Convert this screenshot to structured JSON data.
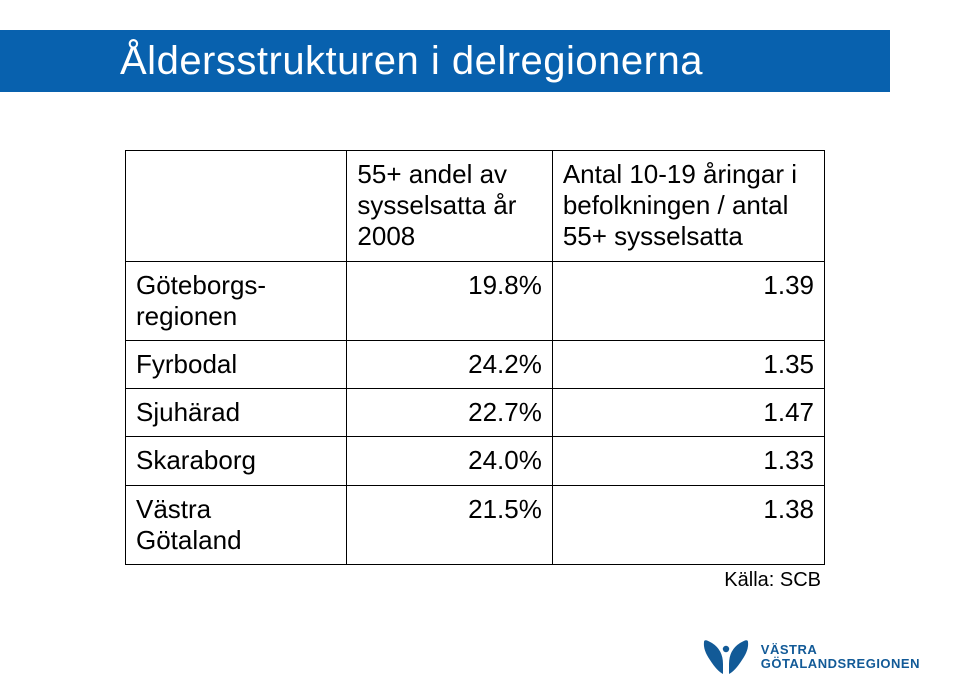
{
  "title": "Åldersstrukturen i delregionerna",
  "columns": {
    "col0": "",
    "col1": "55+ andel av sysselsatta år 2008",
    "col2": "Antal 10-19 åringar i befolkningen / antal 55+ sysselsatta"
  },
  "rows": [
    {
      "label": "Göteborgs-\nregionen",
      "c1": "19.8%",
      "c2": "1.39"
    },
    {
      "label": "Fyrbodal",
      "c1": "24.2%",
      "c2": "1.35"
    },
    {
      "label": "Sjuhärad",
      "c1": "22.7%",
      "c2": "1.47"
    },
    {
      "label": "Skaraborg",
      "c1": "24.0%",
      "c2": "1.33"
    },
    {
      "label": "Västra\nGötaland",
      "c1": "21.5%",
      "c2": "1.38"
    }
  ],
  "source": "Källa: SCB",
  "logo_text": "VÄSTRA\nGÖTALANDSREGIONEN",
  "colors": {
    "title_bar": "#0861ae",
    "title_text": "#ffffff",
    "border": "#000000",
    "logo": "#125a97",
    "background": "#ffffff"
  },
  "fontsize": {
    "title": 40,
    "table": 26,
    "source": 20,
    "logo": 13
  }
}
